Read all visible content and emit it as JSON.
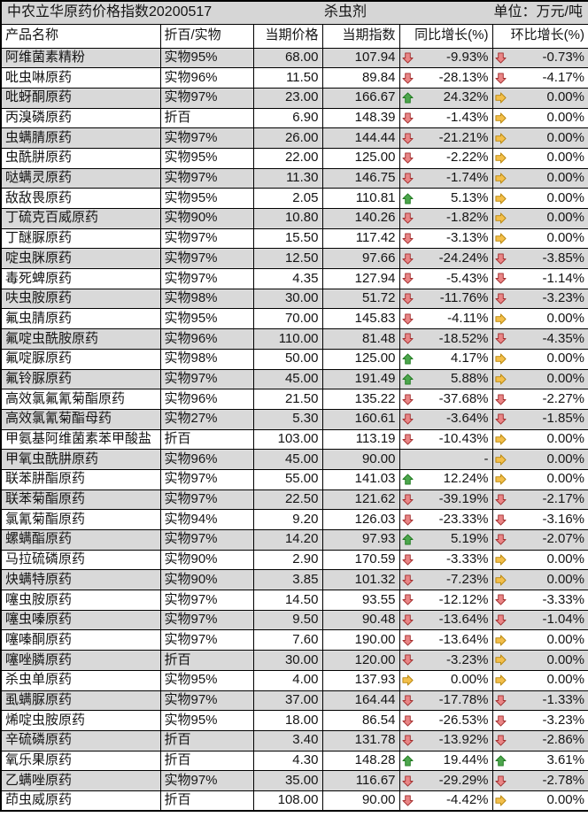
{
  "header": {
    "title": "中农立华原药价格指数20200517",
    "category": "杀虫剂",
    "unit": "单位：万元/吨"
  },
  "columns": [
    "产品名称",
    "折百/实物",
    "当期价格",
    "当期指数",
    "同比增长(%)",
    "环比增长(%)"
  ],
  "trend_colors": {
    "up": {
      "fill": "#4da64d",
      "stroke": "#1f7a1f"
    },
    "down": {
      "fill": "#e98585",
      "stroke": "#a32e2e"
    },
    "flat": {
      "fill": "#f3bf4b",
      "stroke": "#b8860b"
    }
  },
  "stripe_color": "#d9d9d9",
  "rows": [
    {
      "name": "阿维菌素精粉",
      "basis": "实物95%",
      "price": "68.00",
      "index": "107.94",
      "yoy": {
        "trend": "down",
        "value": "-9.93%"
      },
      "mom": {
        "trend": "down",
        "value": "-0.73%"
      }
    },
    {
      "name": "吡虫啉原药",
      "basis": "实物96%",
      "price": "11.50",
      "index": "89.84",
      "yoy": {
        "trend": "down",
        "value": "-28.13%"
      },
      "mom": {
        "trend": "down",
        "value": "-4.17%"
      }
    },
    {
      "name": "吡蚜酮原药",
      "basis": "实物97%",
      "price": "23.00",
      "index": "166.67",
      "yoy": {
        "trend": "up",
        "value": "24.32%"
      },
      "mom": {
        "trend": "flat",
        "value": "0.00%"
      }
    },
    {
      "name": "丙溴磷原药",
      "basis": "折百",
      "price": "6.90",
      "index": "148.39",
      "yoy": {
        "trend": "down",
        "value": "-1.43%"
      },
      "mom": {
        "trend": "flat",
        "value": "0.00%"
      }
    },
    {
      "name": "虫螨腈原药",
      "basis": "实物97%",
      "price": "26.00",
      "index": "144.44",
      "yoy": {
        "trend": "down",
        "value": "-21.21%"
      },
      "mom": {
        "trend": "flat",
        "value": "0.00%"
      }
    },
    {
      "name": "虫酰肼原药",
      "basis": "实物95%",
      "price": "22.00",
      "index": "125.00",
      "yoy": {
        "trend": "down",
        "value": "-2.22%"
      },
      "mom": {
        "trend": "flat",
        "value": "0.00%"
      }
    },
    {
      "name": "哒螨灵原药",
      "basis": "实物97%",
      "price": "11.30",
      "index": "146.75",
      "yoy": {
        "trend": "down",
        "value": "-1.74%"
      },
      "mom": {
        "trend": "flat",
        "value": "0.00%"
      }
    },
    {
      "name": "敌敌畏原药",
      "basis": "实物95%",
      "price": "2.05",
      "index": "110.81",
      "yoy": {
        "trend": "up",
        "value": "5.13%"
      },
      "mom": {
        "trend": "flat",
        "value": "0.00%"
      }
    },
    {
      "name": "丁硫克百威原药",
      "basis": "实物90%",
      "price": "10.80",
      "index": "140.26",
      "yoy": {
        "trend": "down",
        "value": "-1.82%"
      },
      "mom": {
        "trend": "flat",
        "value": "0.00%"
      }
    },
    {
      "name": "丁醚脲原药",
      "basis": "实物97%",
      "price": "15.50",
      "index": "117.42",
      "yoy": {
        "trend": "down",
        "value": "-3.13%"
      },
      "mom": {
        "trend": "flat",
        "value": "0.00%"
      }
    },
    {
      "name": "啶虫脒原药",
      "basis": "实物97%",
      "price": "12.50",
      "index": "97.66",
      "yoy": {
        "trend": "down",
        "value": "-24.24%"
      },
      "mom": {
        "trend": "down",
        "value": "-3.85%"
      }
    },
    {
      "name": "毒死蜱原药",
      "basis": "实物97%",
      "price": "4.35",
      "index": "127.94",
      "yoy": {
        "trend": "down",
        "value": "-5.43%"
      },
      "mom": {
        "trend": "down",
        "value": "-1.14%"
      }
    },
    {
      "name": "呋虫胺原药",
      "basis": "实物98%",
      "price": "30.00",
      "index": "51.72",
      "yoy": {
        "trend": "down",
        "value": "-11.76%"
      },
      "mom": {
        "trend": "down",
        "value": "-3.23%"
      }
    },
    {
      "name": "氟虫腈原药",
      "basis": "实物95%",
      "price": "70.00",
      "index": "145.83",
      "yoy": {
        "trend": "down",
        "value": "-4.11%"
      },
      "mom": {
        "trend": "flat",
        "value": "0.00%"
      }
    },
    {
      "name": "氟啶虫酰胺原药",
      "basis": "实物96%",
      "price": "110.00",
      "index": "81.48",
      "yoy": {
        "trend": "down",
        "value": "-18.52%"
      },
      "mom": {
        "trend": "down",
        "value": "-4.35%"
      }
    },
    {
      "name": "氟啶脲原药",
      "basis": "实物98%",
      "price": "50.00",
      "index": "125.00",
      "yoy": {
        "trend": "up",
        "value": "4.17%"
      },
      "mom": {
        "trend": "flat",
        "value": "0.00%"
      }
    },
    {
      "name": "氟铃脲原药",
      "basis": "实物97%",
      "price": "45.00",
      "index": "191.49",
      "yoy": {
        "trend": "up",
        "value": "5.88%"
      },
      "mom": {
        "trend": "flat",
        "value": "0.00%"
      }
    },
    {
      "name": "高效氯氟氰菊酯原药",
      "basis": "实物96%",
      "price": "21.50",
      "index": "135.22",
      "yoy": {
        "trend": "down",
        "value": "-37.68%"
      },
      "mom": {
        "trend": "down",
        "value": "-2.27%"
      }
    },
    {
      "name": "高效氯氰菊酯母药",
      "basis": "实物27%",
      "price": "5.30",
      "index": "160.61",
      "yoy": {
        "trend": "down",
        "value": "-3.64%"
      },
      "mom": {
        "trend": "down",
        "value": "-1.85%"
      }
    },
    {
      "name": "甲氨基阿维菌素苯甲酸盐",
      "basis": "折百",
      "price": "103.00",
      "index": "113.19",
      "yoy": {
        "trend": "down",
        "value": "-10.43%"
      },
      "mom": {
        "trend": "flat",
        "value": "0.00%"
      }
    },
    {
      "name": "甲氧虫酰肼原药",
      "basis": "实物96%",
      "price": "45.00",
      "index": "90.00",
      "yoy": {
        "trend": null,
        "value": "-"
      },
      "mom": {
        "trend": "flat",
        "value": "0.00%"
      }
    },
    {
      "name": "联苯肼酯原药",
      "basis": "实物97%",
      "price": "55.00",
      "index": "141.03",
      "yoy": {
        "trend": "up",
        "value": "12.24%"
      },
      "mom": {
        "trend": "flat",
        "value": "0.00%"
      }
    },
    {
      "name": "联苯菊酯原药",
      "basis": "实物97%",
      "price": "22.50",
      "index": "121.62",
      "yoy": {
        "trend": "down",
        "value": "-39.19%"
      },
      "mom": {
        "trend": "down",
        "value": "-2.17%"
      }
    },
    {
      "name": "氯氰菊酯原药",
      "basis": "实物94%",
      "price": "9.20",
      "index": "126.03",
      "yoy": {
        "trend": "down",
        "value": "-23.33%"
      },
      "mom": {
        "trend": "down",
        "value": "-3.16%"
      }
    },
    {
      "name": "螺螨酯原药",
      "basis": "实物97%",
      "price": "14.20",
      "index": "97.93",
      "yoy": {
        "trend": "up",
        "value": "5.19%"
      },
      "mom": {
        "trend": "down",
        "value": "-2.07%"
      }
    },
    {
      "name": "马拉硫磷原药",
      "basis": "实物90%",
      "price": "2.90",
      "index": "170.59",
      "yoy": {
        "trend": "down",
        "value": "-3.33%"
      },
      "mom": {
        "trend": "flat",
        "value": "0.00%"
      }
    },
    {
      "name": "炔螨特原药",
      "basis": "实物90%",
      "price": "3.85",
      "index": "101.32",
      "yoy": {
        "trend": "down",
        "value": "-7.23%"
      },
      "mom": {
        "trend": "flat",
        "value": "0.00%"
      }
    },
    {
      "name": "噻虫胺原药",
      "basis": "实物97%",
      "price": "14.50",
      "index": "93.55",
      "yoy": {
        "trend": "down",
        "value": "-12.12%"
      },
      "mom": {
        "trend": "down",
        "value": "-3.33%"
      }
    },
    {
      "name": "噻虫嗪原药",
      "basis": "实物97%",
      "price": "9.50",
      "index": "90.48",
      "yoy": {
        "trend": "down",
        "value": "-13.64%"
      },
      "mom": {
        "trend": "down",
        "value": "-1.04%"
      }
    },
    {
      "name": "噻嗪酮原药",
      "basis": "实物97%",
      "price": "7.60",
      "index": "190.00",
      "yoy": {
        "trend": "down",
        "value": "-13.64%"
      },
      "mom": {
        "trend": "flat",
        "value": "0.00%"
      }
    },
    {
      "name": "噻唑膦原药",
      "basis": "折百",
      "price": "30.00",
      "index": "120.00",
      "yoy": {
        "trend": "down",
        "value": "-3.23%"
      },
      "mom": {
        "trend": "flat",
        "value": "0.00%"
      }
    },
    {
      "name": "杀虫单原药",
      "basis": "实物95%",
      "price": "4.00",
      "index": "137.93",
      "yoy": {
        "trend": "flat",
        "value": "0.00%"
      },
      "mom": {
        "trend": "flat",
        "value": "0.00%"
      }
    },
    {
      "name": "虱螨脲原药",
      "basis": "实物97%",
      "price": "37.00",
      "index": "164.44",
      "yoy": {
        "trend": "down",
        "value": "-17.78%"
      },
      "mom": {
        "trend": "down",
        "value": "-1.33%"
      }
    },
    {
      "name": "烯啶虫胺原药",
      "basis": "实物95%",
      "price": "18.00",
      "index": "86.54",
      "yoy": {
        "trend": "down",
        "value": "-26.53%"
      },
      "mom": {
        "trend": "down",
        "value": "-3.23%"
      }
    },
    {
      "name": "辛硫磷原药",
      "basis": "折百",
      "price": "3.40",
      "index": "131.78",
      "yoy": {
        "trend": "down",
        "value": "-13.92%"
      },
      "mom": {
        "trend": "down",
        "value": "-2.86%"
      }
    },
    {
      "name": "氧乐果原药",
      "basis": "折百",
      "price": "4.30",
      "index": "148.28",
      "yoy": {
        "trend": "up",
        "value": "19.44%"
      },
      "mom": {
        "trend": "up",
        "value": "3.61%"
      }
    },
    {
      "name": "乙螨唑原药",
      "basis": "实物97%",
      "price": "35.00",
      "index": "116.67",
      "yoy": {
        "trend": "down",
        "value": "-29.29%"
      },
      "mom": {
        "trend": "down",
        "value": "-2.78%"
      }
    },
    {
      "name": "茚虫威原药",
      "basis": "折百",
      "price": "108.00",
      "index": "90.00",
      "yoy": {
        "trend": "down",
        "value": "-4.42%"
      },
      "mom": {
        "trend": "flat",
        "value": "0.00%"
      }
    }
  ]
}
